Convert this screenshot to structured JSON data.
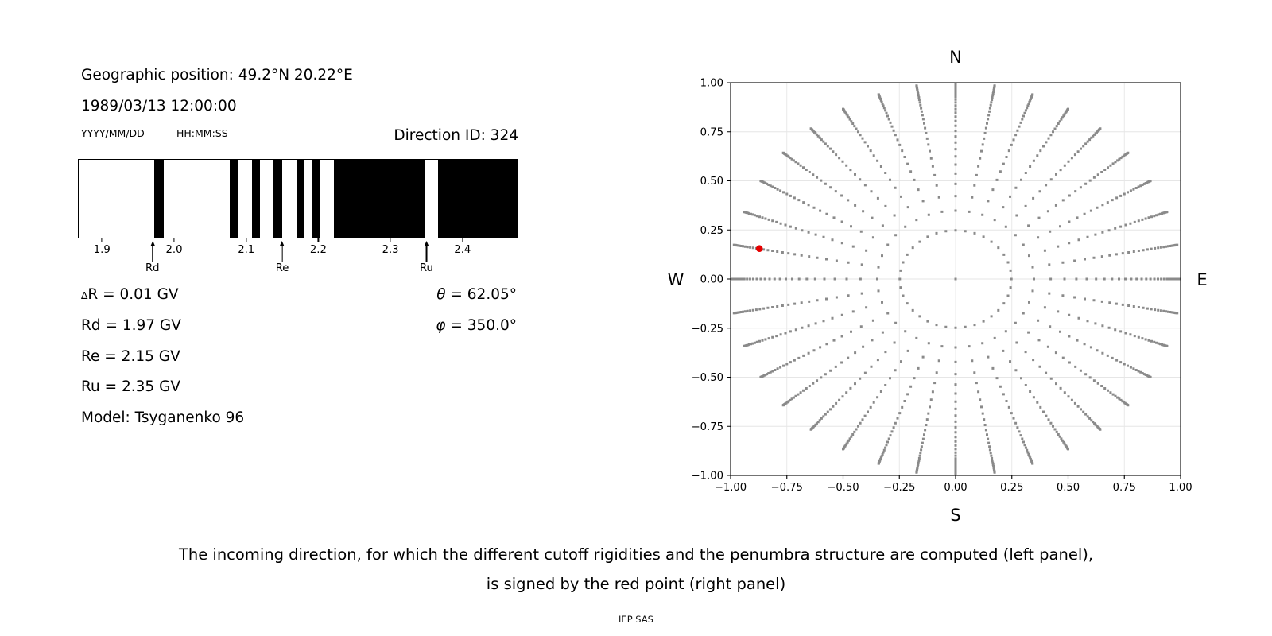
{
  "left_panel": {
    "geo_position": "Geographic position: 49.2°N 20.22°E",
    "datetime": "1989/03/13 12:00:00",
    "date_format": "YYYY/MM/DD",
    "time_format": "HH:MM:SS",
    "direction_id": "Direction ID: 324",
    "delta_symbol": "∆",
    "delta_rest": "R = 0.01 GV",
    "rd": "Rd = 1.97 GV",
    "re": "Re = 2.15 GV",
    "ru": "Ru = 2.35 GV",
    "model": "Model: Tsyganenko 96",
    "theta_symbol": "θ",
    "theta_rest": " = 62.05°",
    "phi_symbol": "φ",
    "phi_rest": " = 350.0°"
  },
  "caption": {
    "line1": "The incoming direction, for which the different cutoff rigidities and the penumbra structure are computed (left panel),",
    "line2": "is signed by the red point (right panel)",
    "credit": "IEP SAS"
  },
  "chart_data": [
    {
      "type": "bar",
      "name": "penumbra-structure",
      "description": "Cutoff rigidity penumbra: black intervals are forbidden rigidities, white allowed",
      "xlim": [
        1.8666,
        2.4774
      ],
      "xticks": [
        1.9,
        2.0,
        2.1,
        2.2,
        2.3,
        2.4
      ],
      "xtick_labels": [
        "1.9",
        "2.0",
        "2.1",
        "2.2",
        "2.3",
        "2.4"
      ],
      "forbidden_color": "#000000",
      "allowed_color": "#ffffff",
      "forbidden_intervals_gv": [
        [
          1.9716,
          1.9846
        ],
        [
          2.0772,
          2.0893
        ],
        [
          2.1077,
          2.1187
        ],
        [
          2.137,
          2.1499
        ],
        [
          2.1694,
          2.1812
        ],
        [
          2.1904,
          2.2025
        ],
        [
          2.2216,
          2.3484
        ],
        [
          2.3668,
          2.4774
        ]
      ],
      "annotations": [
        {
          "label": "Rd",
          "value_gv": 1.97
        },
        {
          "label": "Re",
          "value_gv": 2.15
        },
        {
          "label": "Ru",
          "value_gv": 2.35
        }
      ]
    },
    {
      "type": "scatter",
      "name": "incoming-directions",
      "description": "Grid of incoming directions; gray dots at azimuths every 10° and zenith angles with cos(theta)=k/32, plotted at radius r=sin(theta); red dot marks selected direction ID 324",
      "xlim": [
        -1.0,
        1.0
      ],
      "ylim": [
        -1.0,
        1.0
      ],
      "xticks": [
        -1.0,
        -0.75,
        -0.5,
        -0.25,
        0.0,
        0.25,
        0.5,
        0.75,
        1.0
      ],
      "xtick_labels": [
        "−1.00",
        "−0.75",
        "−0.50",
        "−0.25",
        "0.00",
        "0.25",
        "0.50",
        "0.75",
        "1.00"
      ],
      "yticks": [
        1.0,
        0.75,
        0.5,
        0.25,
        0.0,
        -0.25,
        -0.5,
        -0.75,
        -1.0
      ],
      "ytick_labels": [
        "1.00",
        "0.75",
        "0.50",
        "0.25",
        "0.00",
        "−0.25",
        "−0.50",
        "−0.75",
        "−1.00"
      ],
      "grid": true,
      "grid_color": "#e6e6e6",
      "compass": {
        "top": "N",
        "bottom": "S",
        "left": "W",
        "right": "E"
      },
      "dot_color": "#8a8a8a",
      "direction_grid": {
        "azimuth_start_deg": 0,
        "azimuth_step_deg": 10,
        "azimuth_count": 36,
        "zenith_rule": "cos(theta) = k/32, k = 0..31",
        "radius_rule": "r = sin(theta)",
        "center_point": true
      },
      "red_point": {
        "x": -0.872,
        "y": 0.155,
        "color": "#e60000"
      }
    }
  ]
}
